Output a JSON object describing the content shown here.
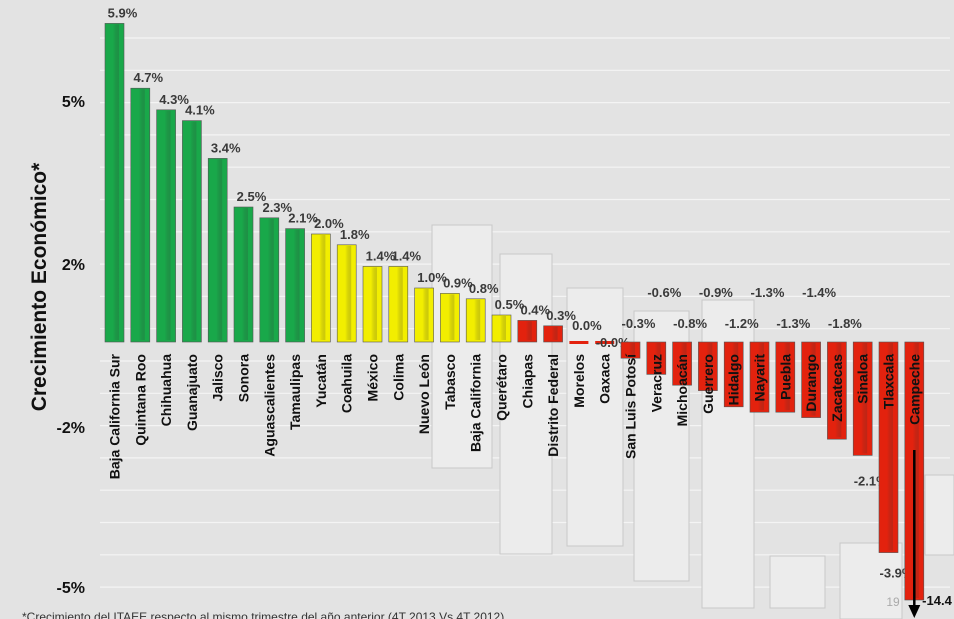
{
  "chart_data": {
    "type": "bar",
    "ylabel": "Crecimiento Económico*",
    "y_tick_labels": [
      "5%",
      "2%",
      "-2%",
      "-5%"
    ],
    "footnote": "*Crecimiento del ITAEE respecto al mismo trimestre del año anterior (4T 2013 Vs 4T 2012)",
    "categories": [
      "Baja California Sur",
      "Quintana Roo",
      "Chihuahua",
      "Guanajuato",
      "Jalisco",
      "Sonora",
      "Aguascalientes",
      "Tamaulipas",
      "Yucatán",
      "Coahuila",
      "México",
      "Colima",
      "Nuevo León",
      "Tabasco",
      "Baja California",
      "Querétaro",
      "Chiapas",
      "Distrito Federal",
      "Morelos",
      "Oaxaca",
      "San Luis Potosí",
      "Veracruz",
      "Michoacán",
      "Guerrero",
      "Hidalgo",
      "Nayarit",
      "Puebla",
      "Durango",
      "Zacatecas",
      "Sinaloa",
      "Tlaxcala",
      "Campeche"
    ],
    "values": [
      5.9,
      4.7,
      4.3,
      4.1,
      3.4,
      2.5,
      2.3,
      2.1,
      2.0,
      1.8,
      1.4,
      1.4,
      1.0,
      0.9,
      0.8,
      0.5,
      0.4,
      0.3,
      0.0,
      -0.0,
      -0.3,
      -0.6,
      -0.8,
      -0.9,
      -1.2,
      -1.3,
      -1.3,
      -1.4,
      -1.8,
      -2.1,
      -3.9,
      -14.4
    ],
    "value_labels": [
      "5.9%",
      "4.7%",
      "4.3%",
      "4.1%",
      "3.4%",
      "2.5%",
      "2.3%",
      "2.1%",
      "2.0%",
      "1.8%",
      "1.4%",
      "1.4%",
      "1.0%",
      "0.9%",
      "0.8%",
      "0.5%",
      "0.4%",
      "0.3%",
      "0.0%",
      "-0.0%",
      "-0.3%",
      "-0.6%",
      "-0.8%",
      "-0.9%",
      "-1.2%",
      "-1.3%",
      "-1.3%",
      "-1.4%",
      "-1.8%",
      "-2.1%",
      "-3.9%",
      "-14.4"
    ],
    "colors_group": [
      "green",
      "green",
      "green",
      "green",
      "green",
      "green",
      "green",
      "green",
      "yellow",
      "yellow",
      "yellow",
      "yellow",
      "yellow",
      "yellow",
      "yellow",
      "yellow",
      "red",
      "red",
      "red",
      "red",
      "red",
      "red",
      "red",
      "red",
      "red",
      "red",
      "red",
      "red",
      "red",
      "red",
      "red",
      "red"
    ],
    "colors": {
      "green": "#19a84a",
      "yellow": "#f2ee00",
      "red": "#e3220e"
    },
    "page_number": "19"
  }
}
